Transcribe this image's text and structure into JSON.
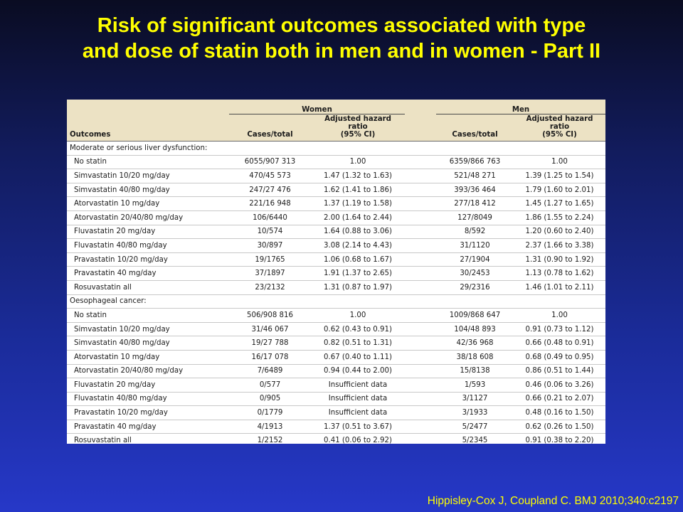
{
  "title": {
    "line1": "Risk of significant outcomes associated with type",
    "line2": "and dose of statin both in men and in women -  Part II"
  },
  "table": {
    "group_women": "Women",
    "group_men": "Men",
    "col_outcomes": "Outcomes",
    "col_cases_women": "Cases/total",
    "col_hr_women_line1": "Adjusted hazard ratio",
    "col_hr_women_line2": "(95% CI)",
    "col_cases_men": "Cases/total",
    "col_hr_men_line1": "Adjusted hazard ratio",
    "col_hr_men_line2": "(95% CI)",
    "rows": [
      {
        "label": "Moderate or serious liver dysfunction:",
        "section": true,
        "w_cases": "",
        "w_hr": "",
        "m_cases": "",
        "m_hr": ""
      },
      {
        "label": "No statin",
        "section": false,
        "w_cases": "6055/907 313",
        "w_hr": "1.00",
        "m_cases": "6359/866 763",
        "m_hr": "1.00"
      },
      {
        "label": "Simvastatin 10/20 mg/day",
        "section": false,
        "w_cases": "470/45 573",
        "w_hr": "1.47 (1.32 to 1.63)",
        "m_cases": "521/48 271",
        "m_hr": "1.39 (1.25 to 1.54)"
      },
      {
        "label": "Simvastatin 40/80 mg/day",
        "section": false,
        "w_cases": "247/27 476",
        "w_hr": "1.62 (1.41 to 1.86)",
        "m_cases": "393/36 464",
        "m_hr": "1.79 (1.60 to 2.01)"
      },
      {
        "label": "Atorvastatin 10 mg/day",
        "section": false,
        "w_cases": "221/16 948",
        "w_hr": "1.37 (1.19 to 1.58)",
        "m_cases": "277/18 412",
        "m_hr": "1.45 (1.27 to 1.65)"
      },
      {
        "label": "Atorvastatin 20/40/80 mg/day",
        "section": false,
        "w_cases": "106/6440",
        "w_hr": "2.00 (1.64 to 2.44)",
        "m_cases": "127/8049",
        "m_hr": "1.86 (1.55 to 2.24)"
      },
      {
        "label": "Fluvastatin 20 mg/day",
        "section": false,
        "w_cases": "10/574",
        "w_hr": "1.64 (0.88 to 3.06)",
        "m_cases": "8/592",
        "m_hr": "1.20 (0.60 to 2.40)"
      },
      {
        "label": "Fluvastatin 40/80 mg/day",
        "section": false,
        "w_cases": "30/897",
        "w_hr": "3.08 (2.14 to 4.43)",
        "m_cases": "31/1120",
        "m_hr": "2.37 (1.66 to 3.38)"
      },
      {
        "label": "Pravastatin 10/20 mg/day",
        "section": false,
        "w_cases": "19/1765",
        "w_hr": "1.06 (0.68 to 1.67)",
        "m_cases": "27/1904",
        "m_hr": "1.31 (0.90 to 1.92)"
      },
      {
        "label": "Pravastatin 40 mg/day",
        "section": false,
        "w_cases": "37/1897",
        "w_hr": "1.91 (1.37 to 2.65)",
        "m_cases": "30/2453",
        "m_hr": "1.13 (0.78 to 1.62)"
      },
      {
        "label": "Rosuvastatin all",
        "section": false,
        "w_cases": "23/2132",
        "w_hr": "1.31 (0.87 to 1.97)",
        "m_cases": "29/2316",
        "m_hr": "1.46 (1.01 to 2.11)"
      },
      {
        "label": "Oesophageal cancer:",
        "section": true,
        "w_cases": "",
        "w_hr": "",
        "m_cases": "",
        "m_hr": ""
      },
      {
        "label": "No statin",
        "section": false,
        "w_cases": "506/908 816",
        "w_hr": "1.00",
        "m_cases": "1009/868 647",
        "m_hr": "1.00"
      },
      {
        "label": "Simvastatin 10/20 mg/day",
        "section": false,
        "w_cases": "31/46 067",
        "w_hr": "0.62 (0.43 to 0.91)",
        "m_cases": "104/48 893",
        "m_hr": "0.91 (0.73 to 1.12)"
      },
      {
        "label": "Simvastatin 40/80 mg/day",
        "section": false,
        "w_cases": "19/27 788",
        "w_hr": "0.82 (0.51 to 1.31)",
        "m_cases": "42/36 968",
        "m_hr": "0.66 (0.48 to 0.91)"
      },
      {
        "label": "Atorvastatin 10 mg/day",
        "section": false,
        "w_cases": "16/17 078",
        "w_hr": "0.67 (0.40 to 1.11)",
        "m_cases": "38/18 608",
        "m_hr": "0.68 (0.49 to 0.95)"
      },
      {
        "label": "Atorvastatin 20/40/80 mg/day",
        "section": false,
        "w_cases": "7/6489",
        "w_hr": "0.94 (0.44 to 2.00)",
        "m_cases": "15/8138",
        "m_hr": "0.86 (0.51 to 1.44)"
      },
      {
        "label": "Fluvastatin 20 mg/day",
        "section": false,
        "w_cases": "0/577",
        "w_hr": "Insufficient data",
        "m_cases": "1/593",
        "m_hr": "0.46 (0.06 to 3.26)"
      },
      {
        "label": "Fluvastatin 40/80 mg/day",
        "section": false,
        "w_cases": "0/905",
        "w_hr": "Insufficient data",
        "m_cases": "3/1127",
        "m_hr": "0.66 (0.21 to 2.07)"
      },
      {
        "label": "Pravastatin 10/20 mg/day",
        "section": false,
        "w_cases": "0/1779",
        "w_hr": "Insufficient data",
        "m_cases": "3/1933",
        "m_hr": "0.48 (0.16 to 1.50)"
      },
      {
        "label": "Pravastatin 40 mg/day",
        "section": false,
        "w_cases": "4/1913",
        "w_hr": "1.37 (0.51 to 3.67)",
        "m_cases": "5/2477",
        "m_hr": "0.62 (0.26 to 1.50)"
      },
      {
        "label": "Rosuvastatin all",
        "section": false,
        "w_cases": "1/2152",
        "w_hr": "0.41 (0.06 to 2.92)",
        "m_cases": "5/2345",
        "m_hr": "0.91 (0.38 to 2.20)"
      }
    ]
  },
  "citation": "Hippisley-Cox J, Coupland C.   BMJ 2010;340:c2197",
  "colors": {
    "title": "#ffff00",
    "header_background": "#ece2c4",
    "citation": "#ffff00"
  }
}
